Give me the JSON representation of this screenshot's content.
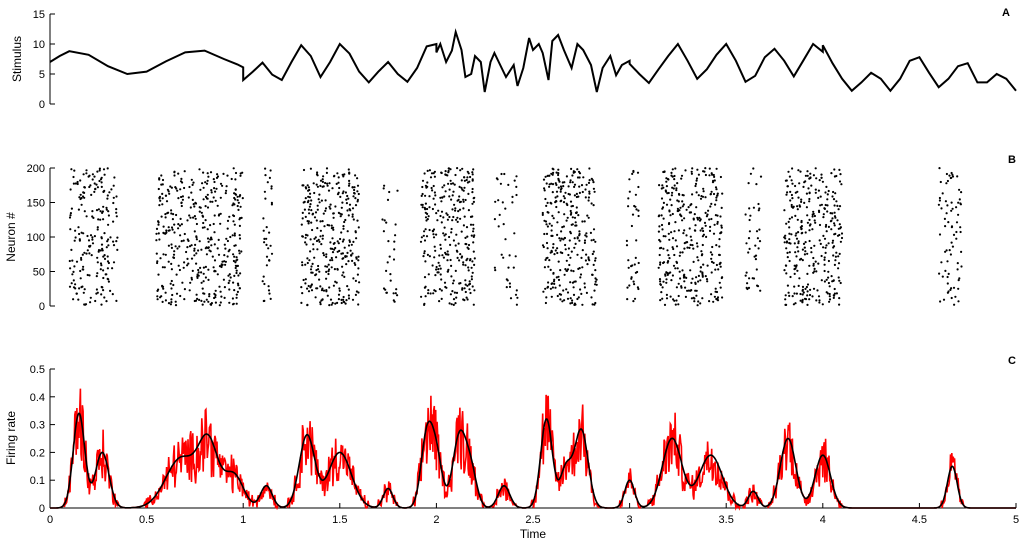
{
  "chart_data": [
    {
      "panel_label": "A",
      "type": "line",
      "ylabel": "Stimulus",
      "ylim": [
        0,
        15
      ],
      "yticks": [
        "0",
        "5",
        "10",
        "15"
      ],
      "xlim": [
        0,
        5
      ],
      "series": [
        {
          "color": "#000000",
          "x": [
            0,
            0.05,
            0.1,
            0.2,
            0.3,
            0.4,
            0.5,
            0.6,
            0.7,
            0.8,
            0.9,
            0.97,
            1.0,
            1.0,
            1.05,
            1.1,
            1.15,
            1.2,
            1.25,
            1.3,
            1.35,
            1.4,
            1.45,
            1.5,
            1.55,
            1.6,
            1.65,
            1.7,
            1.75,
            1.8,
            1.85,
            1.9,
            1.95,
            2.0,
            2.0,
            2.02,
            2.05,
            2.08,
            2.1,
            2.13,
            2.15,
            2.18,
            2.2,
            2.23,
            2.25,
            2.28,
            2.3,
            2.33,
            2.36,
            2.4,
            2.42,
            2.45,
            2.48,
            2.5,
            2.53,
            2.55,
            2.58,
            2.6,
            2.63,
            2.66,
            2.7,
            2.73,
            2.76,
            2.8,
            2.83,
            2.86,
            2.9,
            2.93,
            2.96,
            3.0,
            3.0,
            3.05,
            3.1,
            3.15,
            3.2,
            3.25,
            3.3,
            3.35,
            3.4,
            3.45,
            3.5,
            3.55,
            3.6,
            3.65,
            3.7,
            3.75,
            3.8,
            3.85,
            3.9,
            3.95,
            4.0,
            4.0,
            4.05,
            4.1,
            4.15,
            4.2,
            4.25,
            4.3,
            4.35,
            4.4,
            4.45,
            4.5,
            4.55,
            4.6,
            4.65,
            4.7,
            4.75,
            4.8,
            4.85,
            4.9,
            4.95,
            5.0
          ],
          "y": [
            7.0,
            8.0,
            8.8,
            8.2,
            6.3,
            5.0,
            5.4,
            7.1,
            8.6,
            8.9,
            7.5,
            6.6,
            6.1,
            4.0,
            5.4,
            6.9,
            4.9,
            4.0,
            7.0,
            9.8,
            8.0,
            4.5,
            7.0,
            10.0,
            8.4,
            5.4,
            3.6,
            5.4,
            7.0,
            5.0,
            3.7,
            6.0,
            9.6,
            10.0,
            8.6,
            10.0,
            7.0,
            8.9,
            12.0,
            9.0,
            4.5,
            5.0,
            8.0,
            7.0,
            2.0,
            7.0,
            8.5,
            6.5,
            4.5,
            6.5,
            3.0,
            6.0,
            11.0,
            9.0,
            10.0,
            8.5,
            4.0,
            10.5,
            11.5,
            9.0,
            6.0,
            10.0,
            9.0,
            6.5,
            2.0,
            6.0,
            8.0,
            4.8,
            6.5,
            7.2,
            6.7,
            5.0,
            3.5,
            5.8,
            8.0,
            10.0,
            7.2,
            4.2,
            5.8,
            8.2,
            10.0,
            7.2,
            3.7,
            4.7,
            7.8,
            9.2,
            7.2,
            4.6,
            7.3,
            10.0,
            8.7,
            9.8,
            6.8,
            4.2,
            2.2,
            3.6,
            5.2,
            4.2,
            2.2,
            4.2,
            7.2,
            7.8,
            5.2,
            2.8,
            4.2,
            6.3,
            6.8,
            3.6,
            3.6,
            5.0,
            4.2,
            2.2
          ]
        }
      ]
    },
    {
      "panel_label": "B",
      "type": "scatter",
      "ylabel": "Neuron #",
      "ylim": [
        0,
        200
      ],
      "yticks": [
        "0",
        "50",
        "100",
        "150",
        "200"
      ],
      "xlim": [
        0,
        5
      ],
      "bursts": [
        {
          "start": 0.1,
          "end": 0.35,
          "n_spikes": 210
        },
        {
          "start": 0.55,
          "end": 1.0,
          "n_spikes": 420
        },
        {
          "start": 1.1,
          "end": 1.15,
          "n_spikes": 35
        },
        {
          "start": 1.3,
          "end": 1.6,
          "n_spikes": 330
        },
        {
          "start": 1.72,
          "end": 1.8,
          "n_spikes": 30
        },
        {
          "start": 1.92,
          "end": 2.2,
          "n_spikes": 300
        },
        {
          "start": 2.3,
          "end": 2.42,
          "n_spikes": 40
        },
        {
          "start": 2.55,
          "end": 2.83,
          "n_spikes": 300
        },
        {
          "start": 2.98,
          "end": 3.05,
          "n_spikes": 40
        },
        {
          "start": 3.15,
          "end": 3.48,
          "n_spikes": 350
        },
        {
          "start": 3.6,
          "end": 3.68,
          "n_spikes": 40
        },
        {
          "start": 3.8,
          "end": 4.1,
          "n_spikes": 320
        },
        {
          "start": 4.6,
          "end": 4.72,
          "n_spikes": 75
        }
      ]
    },
    {
      "panel_label": "C",
      "type": "line",
      "ylabel": "Firing rate",
      "xlabel": "Time",
      "ylim": [
        0,
        0.5
      ],
      "yticks": [
        "0",
        "0.1",
        "0.2",
        "0.3",
        "0.4",
        "0.5"
      ],
      "xlim": [
        0,
        5
      ],
      "xticks": [
        "0",
        "0.5",
        "1",
        "1.5",
        "2",
        "2.5",
        "3",
        "3.5",
        "4",
        "4.5",
        "5"
      ],
      "series": [
        {
          "color": "#ff0000",
          "peaks": [
            {
              "x": 0.15,
              "y": 0.34,
              "w": 0.03
            },
            {
              "x": 0.27,
              "y": 0.2,
              "w": 0.035
            },
            {
              "x": 0.68,
              "y": 0.18,
              "w": 0.08
            },
            {
              "x": 0.82,
              "y": 0.22,
              "w": 0.05
            },
            {
              "x": 0.95,
              "y": 0.12,
              "w": 0.05
            },
            {
              "x": 1.12,
              "y": 0.08,
              "w": 0.03
            },
            {
              "x": 1.33,
              "y": 0.26,
              "w": 0.04
            },
            {
              "x": 1.5,
              "y": 0.2,
              "w": 0.06
            },
            {
              "x": 1.75,
              "y": 0.07,
              "w": 0.025
            },
            {
              "x": 1.95,
              "y": 0.25,
              "w": 0.03
            },
            {
              "x": 2.0,
              "y": 0.18,
              "w": 0.03
            },
            {
              "x": 2.12,
              "y": 0.26,
              "w": 0.035
            },
            {
              "x": 2.18,
              "y": 0.12,
              "w": 0.03
            },
            {
              "x": 2.35,
              "y": 0.08,
              "w": 0.03
            },
            {
              "x": 2.57,
              "y": 0.32,
              "w": 0.03
            },
            {
              "x": 2.67,
              "y": 0.14,
              "w": 0.03
            },
            {
              "x": 2.75,
              "y": 0.28,
              "w": 0.035
            },
            {
              "x": 3.0,
              "y": 0.1,
              "w": 0.025
            },
            {
              "x": 3.22,
              "y": 0.25,
              "w": 0.05
            },
            {
              "x": 3.42,
              "y": 0.19,
              "w": 0.06
            },
            {
              "x": 3.64,
              "y": 0.06,
              "w": 0.025
            },
            {
              "x": 3.82,
              "y": 0.25,
              "w": 0.04
            },
            {
              "x": 4.0,
              "y": 0.19,
              "w": 0.04
            },
            {
              "x": 4.67,
              "y": 0.15,
              "w": 0.025
            }
          ]
        },
        {
          "color": "#000000",
          "peaks": "same as red series, smoothed"
        }
      ]
    }
  ]
}
